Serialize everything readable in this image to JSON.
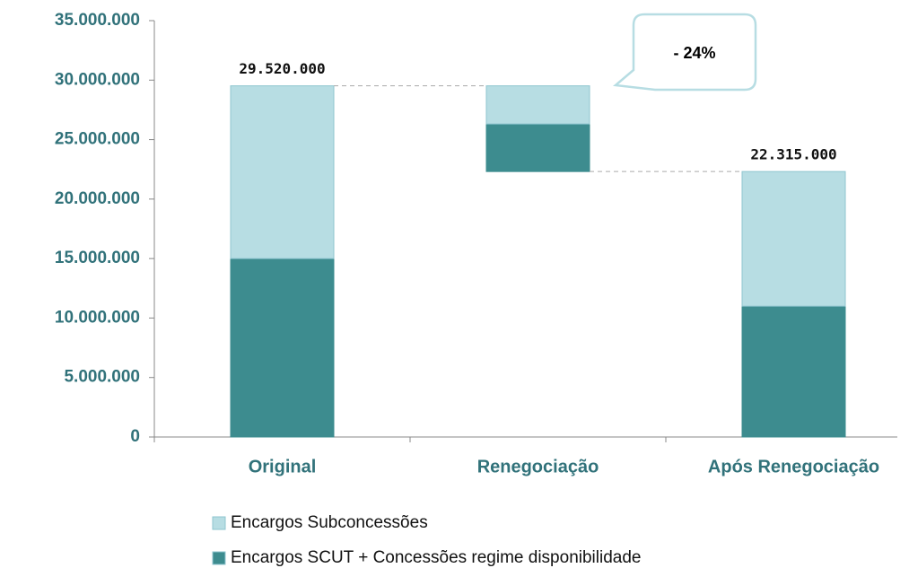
{
  "chart_data": {
    "type": "waterfall_stacked",
    "categories": [
      "Original",
      "Renegociação",
      "Após Renegociação"
    ],
    "series": [
      {
        "name": "Encargos SCUT + Concessões regime disponibilidade",
        "color": "#3d8c8f",
        "values": [
          15000000,
          4000000,
          11000000
        ]
      },
      {
        "name": "Encargos Subconcessões",
        "color": "#b7dde3",
        "values": [
          14520000,
          3205000,
          11315000
        ]
      }
    ],
    "totals": [
      29520000,
      null,
      22315000
    ],
    "total_labels": [
      "29.520.000",
      null,
      "22.315.000"
    ],
    "annotation": "- 24%",
    "ylim": [
      0,
      35000000
    ],
    "yticks": [
      0,
      {
        "value": 5000000,
        "label": "5.000.000"
      },
      {
        "value": 10000000,
        "label": "10.000.000"
      },
      {
        "value": 15000000,
        "label": "15.000.000"
      },
      {
        "value": 20000000,
        "label": "20.000.000"
      },
      {
        "value": 25000000,
        "label": "25.000.000"
      },
      {
        "value": 30000000,
        "label": "30.000.000"
      },
      {
        "value": 35000000,
        "label": "35.000.000"
      }
    ]
  }
}
